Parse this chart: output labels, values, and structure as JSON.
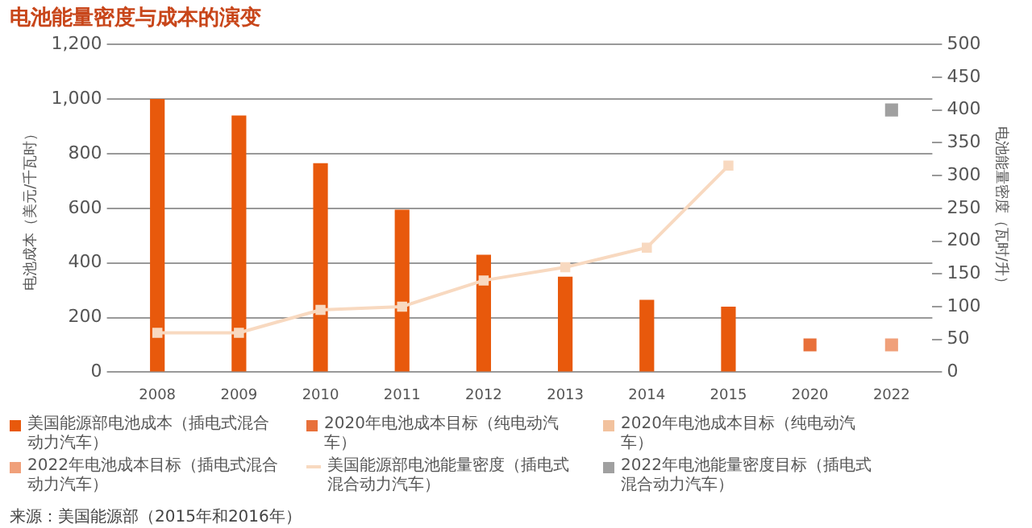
{
  "chart_data": {
    "type": "bar",
    "title": "电池能量密度与成本的演变",
    "ylabel": "电池成本（美元/千瓦时）",
    "y2label": "电池能量密度（瓦时/升）",
    "categories": [
      "2008",
      "2009",
      "2010",
      "2011",
      "2012",
      "2013",
      "2014",
      "2015",
      "2020",
      "2022"
    ],
    "series": [
      {
        "name": "美国能源部电池成本（插电式混合动力汽车）",
        "color": "#e8590c",
        "values": [
          1000,
          940,
          765,
          595,
          430,
          350,
          265,
          240,
          null,
          null
        ]
      },
      {
        "name": "2020年电池成本目标（纯电动汽车）",
        "type": "scatter",
        "marker": "square",
        "color": "#e8703a",
        "values": [
          null,
          null,
          null,
          null,
          null,
          null,
          null,
          null,
          100,
          null
        ]
      },
      {
        "name": "2020年电池成本目标（纯电动汽车）",
        "type": "scatter",
        "marker": "square",
        "color": "#f2c29e",
        "values": [
          null,
          null,
          null,
          null,
          null,
          null,
          null,
          null,
          null,
          null
        ]
      },
      {
        "name": "2022年电池成本目标（插电式混合动力汽车）",
        "type": "scatter",
        "marker": "square",
        "color": "#f0a07a",
        "values": [
          null,
          null,
          null,
          null,
          null,
          null,
          null,
          null,
          null,
          100
        ]
      },
      {
        "name": "美国能源部电池能量密度（插电式混合动力汽车）",
        "type": "line",
        "axis": "y2",
        "marker": "square",
        "color": "#f8d9c0",
        "values": [
          60,
          60,
          95,
          100,
          140,
          160,
          190,
          315,
          null,
          null
        ]
      },
      {
        "name": "2022年电池能量密度目标（插电式混合动力汽车）",
        "type": "scatter",
        "axis": "y2",
        "marker": "square",
        "color": "#a0a0a0",
        "values": [
          null,
          null,
          null,
          null,
          null,
          null,
          null,
          null,
          null,
          400
        ]
      }
    ],
    "ylim": [
      0,
      1200
    ],
    "yticks": [
      0,
      {
        "value": 200,
        "label": "200"
      },
      400,
      600,
      800,
      {
        "value": 1000,
        "label": "1,000"
      },
      {
        "value": 1200,
        "label": "1,200"
      }
    ],
    "y2lim": [
      0,
      500
    ],
    "y2ticks": [
      0,
      50,
      100,
      150,
      200,
      250,
      300,
      350,
      400,
      450,
      500
    ],
    "grid": "y",
    "legend": "bottom",
    "annotations": [
      "来源：美国能源部（2015年和2016年）"
    ]
  }
}
